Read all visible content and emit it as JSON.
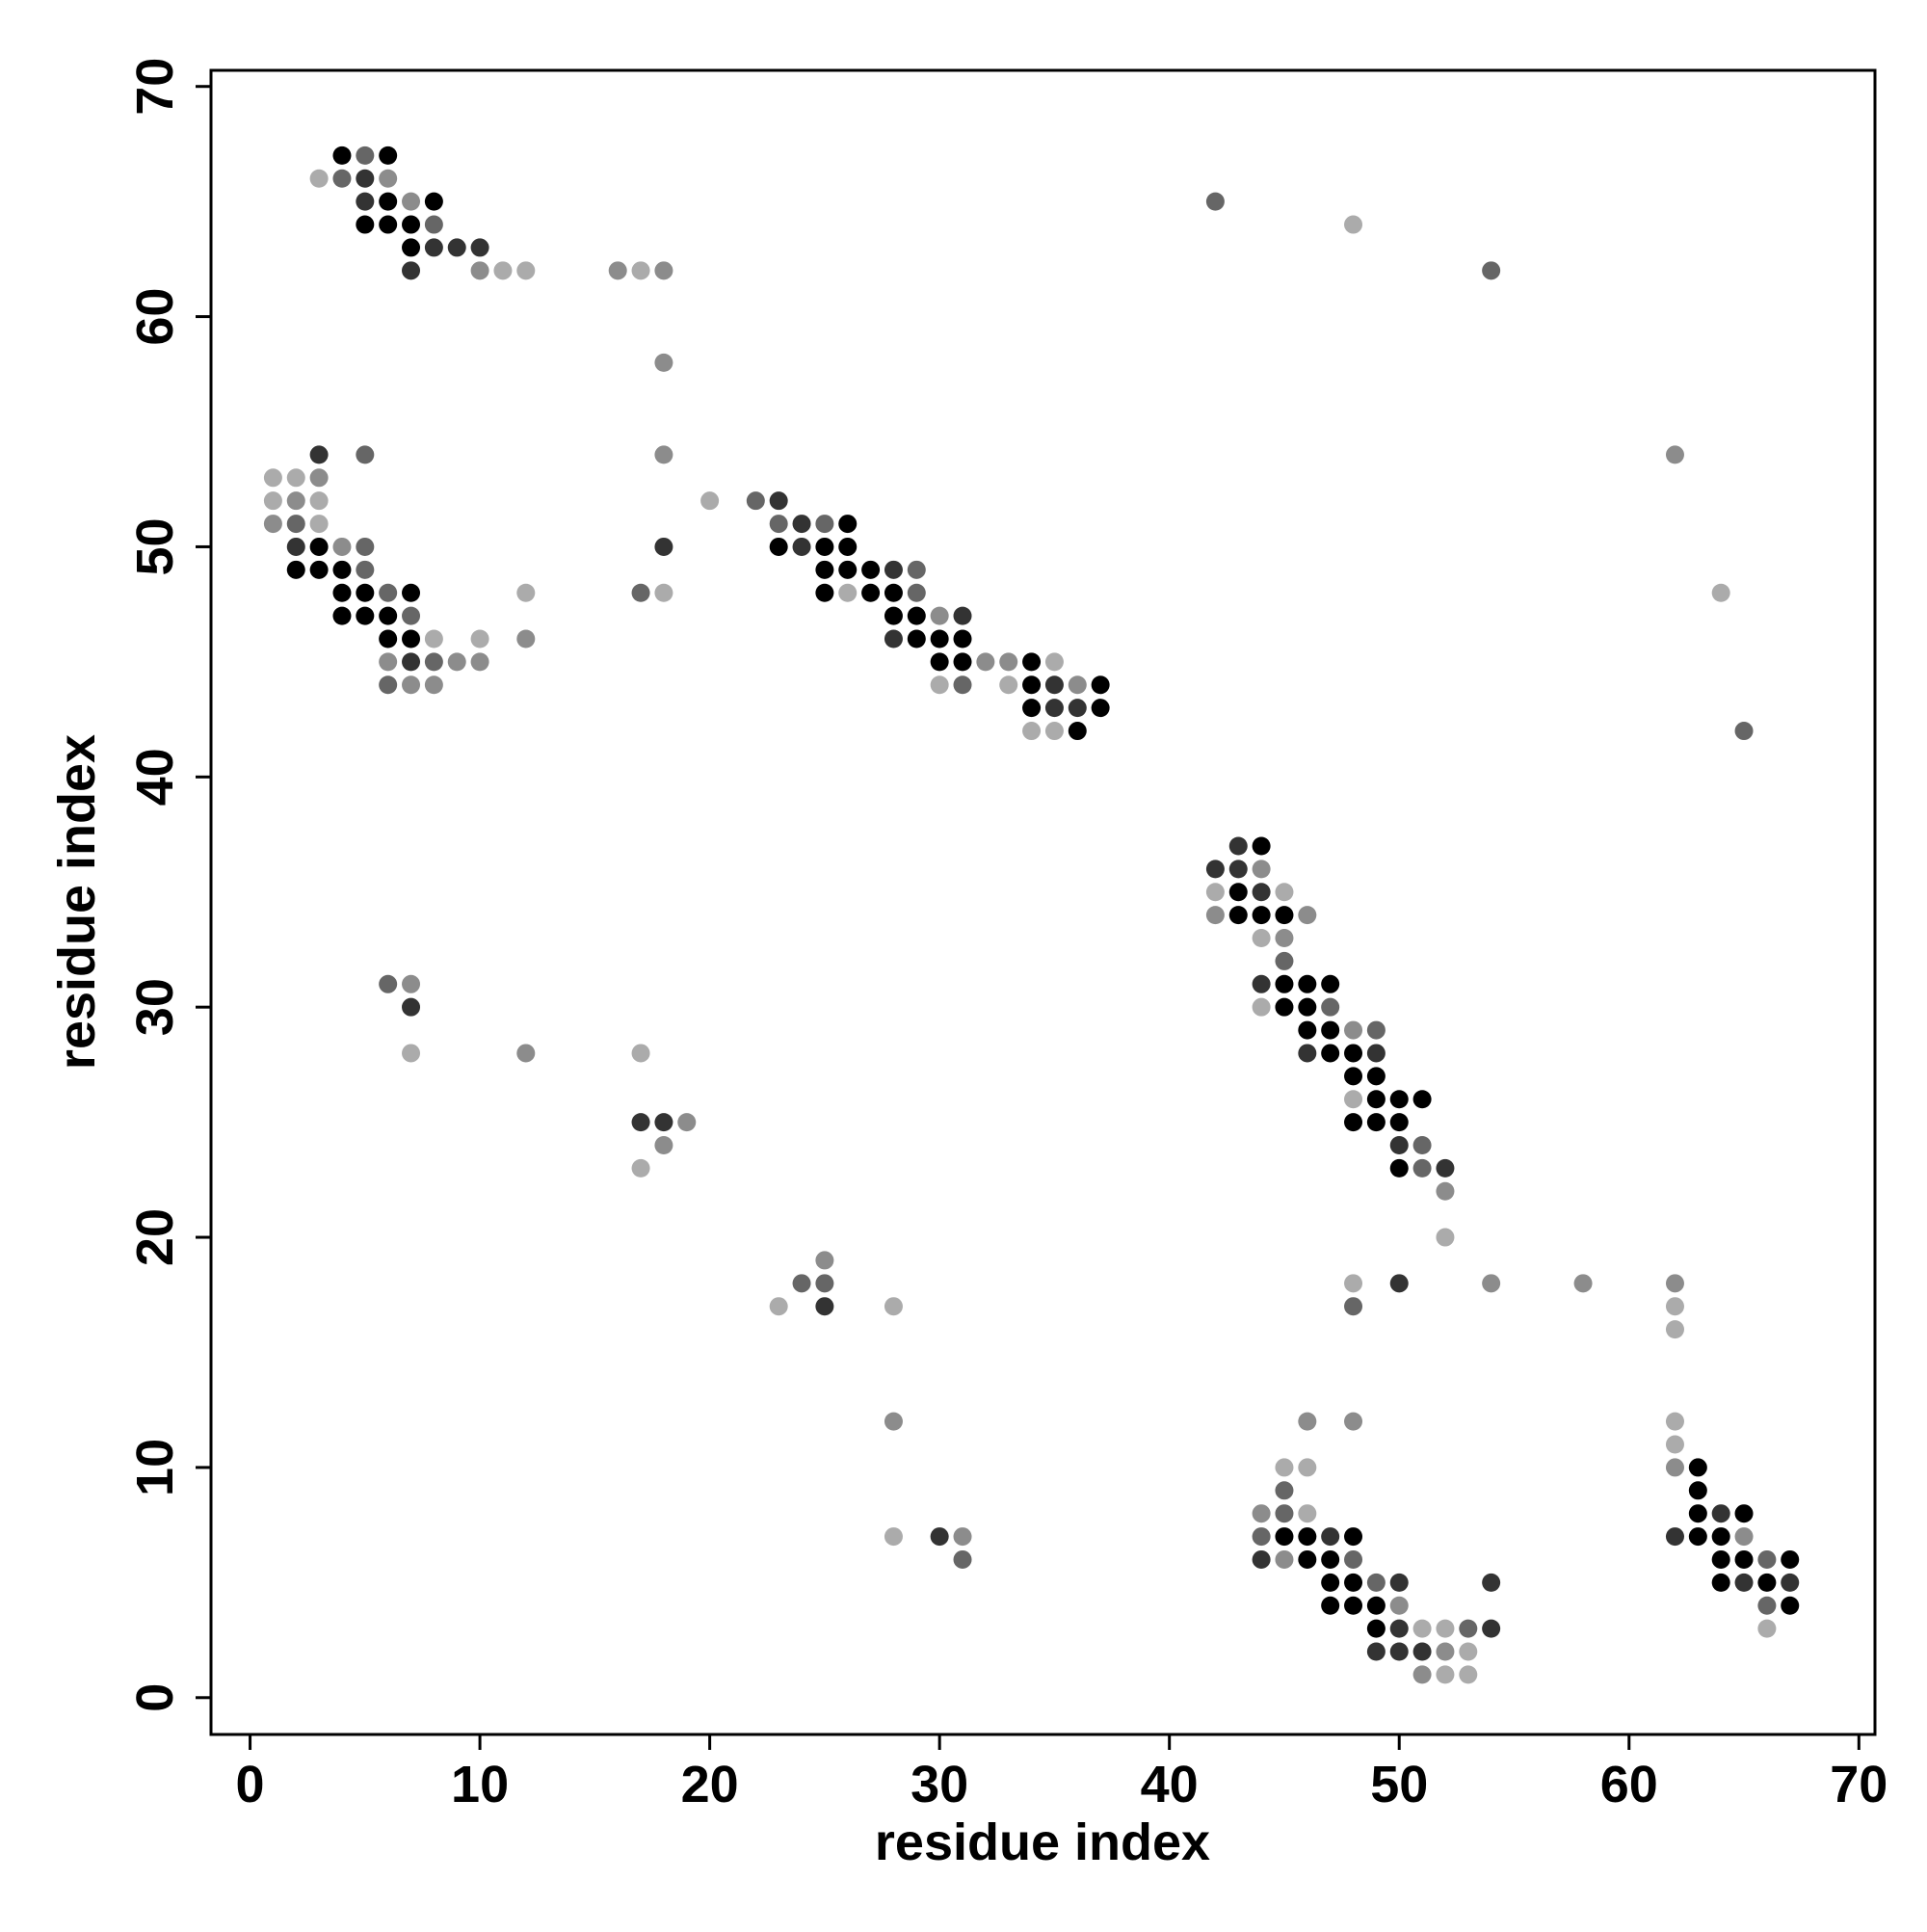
{
  "chart_data": {
    "type": "scatter",
    "x_label": "residue index",
    "y_label": "residue index",
    "xlim": [
      -1.7,
      70.7
    ],
    "ylim": [
      -1.6,
      70.7
    ],
    "xticks": [
      0,
      10,
      20,
      30,
      40,
      50,
      60,
      70
    ],
    "yticks": [
      0,
      10,
      20,
      30,
      40,
      50,
      60,
      70
    ],
    "grid": false,
    "series": [
      {
        "color": "#000000",
        "x": [
          4,
          6,
          6,
          8,
          5,
          6,
          7,
          7,
          26,
          3,
          23,
          25,
          26,
          2,
          3,
          4,
          25,
          26,
          27,
          4,
          5,
          7,
          25,
          27,
          28,
          4,
          5,
          6,
          28,
          29,
          6,
          7,
          29,
          30,
          31,
          30,
          31,
          34,
          34,
          37,
          34,
          37,
          36,
          44,
          43,
          43,
          44,
          45,
          45,
          46,
          47,
          45,
          46,
          46,
          47,
          47,
          48,
          48,
          49,
          49,
          50,
          51,
          48,
          49,
          50,
          50,
          63,
          63,
          63,
          65,
          45,
          46,
          48,
          63,
          64,
          46,
          47,
          64,
          65,
          67,
          47,
          48,
          64,
          66,
          47,
          48,
          49,
          67,
          49
        ],
        "values": [
          67,
          67,
          65,
          65,
          64,
          64,
          64,
          63,
          51,
          50,
          50,
          50,
          50,
          49,
          49,
          49,
          49,
          49,
          49,
          48,
          48,
          48,
          48,
          48,
          48,
          47,
          47,
          47,
          47,
          47,
          46,
          46,
          46,
          46,
          46,
          45,
          45,
          45,
          44,
          44,
          43,
          43,
          42,
          37,
          35,
          34,
          34,
          34,
          31,
          31,
          31,
          30,
          30,
          29,
          29,
          28,
          28,
          27,
          27,
          26,
          26,
          26,
          25,
          25,
          25,
          23,
          10,
          9,
          8,
          8,
          7,
          7,
          7,
          7,
          7,
          6,
          6,
          6,
          6,
          6,
          5,
          5,
          5,
          5,
          4,
          4,
          4,
          4,
          3
        ]
      },
      {
        "color": "#333333",
        "x": [
          5,
          5,
          8,
          9,
          10,
          7,
          3,
          23,
          24,
          2,
          18,
          24,
          28,
          31,
          28,
          7,
          35,
          35,
          36,
          43,
          42,
          43,
          44,
          44,
          7,
          46,
          49,
          17,
          18,
          50,
          52,
          50,
          25,
          64,
          30,
          47,
          62,
          44,
          50,
          54,
          65,
          67,
          50,
          54,
          49,
          50,
          51
        ],
        "values": [
          66,
          65,
          63,
          63,
          63,
          62,
          54,
          52,
          51,
          50,
          50,
          50,
          49,
          47,
          46,
          45,
          44,
          43,
          43,
          37,
          36,
          36,
          35,
          31,
          30,
          28,
          28,
          25,
          25,
          24,
          23,
          18,
          17,
          8,
          7,
          7,
          7,
          6,
          5,
          5,
          5,
          5,
          3,
          3,
          2,
          2,
          2
        ]
      },
      {
        "color": "#666666",
        "x": [
          5,
          4,
          42,
          8,
          54,
          5,
          22,
          2,
          23,
          25,
          5,
          5,
          29,
          6,
          17,
          29,
          7,
          8,
          6,
          31,
          65,
          45,
          6,
          47,
          49,
          51,
          51,
          24,
          25,
          48,
          45,
          45,
          44,
          31,
          48,
          66,
          49,
          66,
          53
        ],
        "values": [
          67,
          66,
          65,
          64,
          62,
          54,
          52,
          51,
          51,
          51,
          50,
          49,
          49,
          48,
          48,
          48,
          47,
          45,
          44,
          44,
          42,
          32,
          31,
          30,
          29,
          24,
          23,
          18,
          18,
          17,
          9,
          8,
          7,
          6,
          6,
          6,
          5,
          4,
          3
        ]
      },
      {
        "color": "#8c8c8c",
        "x": [
          6,
          7,
          10,
          16,
          18,
          18,
          18,
          62,
          3,
          2,
          1,
          4,
          30,
          12,
          6,
          9,
          10,
          32,
          33,
          7,
          8,
          36,
          44,
          42,
          46,
          45,
          7,
          48,
          12,
          19,
          18,
          52,
          25,
          54,
          58,
          62,
          28,
          46,
          48,
          62,
          44,
          31,
          65,
          45,
          50,
          52,
          51
        ],
        "values": [
          66,
          65,
          62,
          62,
          62,
          58,
          54,
          54,
          53,
          52,
          51,
          50,
          47,
          46,
          45,
          45,
          45,
          45,
          45,
          44,
          44,
          44,
          36,
          34,
          34,
          33,
          31,
          29,
          28,
          25,
          24,
          22,
          19,
          18,
          18,
          18,
          12,
          12,
          12,
          10,
          8,
          7,
          7,
          6,
          4,
          2,
          1
        ]
      },
      {
        "color": "#ababab",
        "x": [
          3,
          48,
          11,
          12,
          17,
          1,
          2,
          1,
          3,
          20,
          3,
          12,
          18,
          26,
          64,
          8,
          10,
          35,
          30,
          33,
          34,
          35,
          42,
          45,
          44,
          44,
          7,
          17,
          48,
          17,
          52,
          48,
          23,
          28,
          62,
          62,
          62,
          62,
          45,
          46,
          46,
          28,
          51,
          52,
          66,
          53,
          52,
          53
        ],
        "values": [
          66,
          64,
          62,
          62,
          62,
          53,
          53,
          52,
          52,
          52,
          51,
          48,
          48,
          48,
          48,
          46,
          46,
          45,
          44,
          44,
          42,
          42,
          35,
          35,
          33,
          30,
          28,
          28,
          26,
          23,
          20,
          18,
          17,
          17,
          17,
          16,
          12,
          11,
          10,
          10,
          8,
          7,
          3,
          3,
          3,
          2,
          1,
          1
        ]
      }
    ]
  }
}
